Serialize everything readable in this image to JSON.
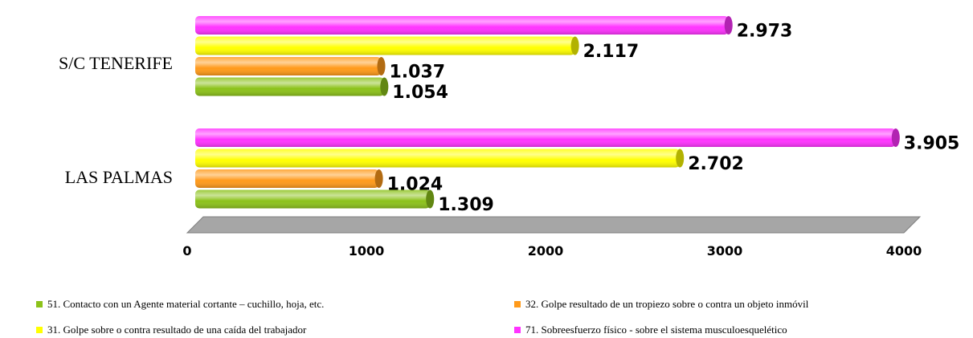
{
  "chart_data": {
    "type": "bar",
    "orientation": "horizontal",
    "categories": [
      "S/C TENERIFE",
      "LAS PALMAS"
    ],
    "series": [
      {
        "name": "51. Contacto con un Agente material cortante –  cuchillo, hoja, etc.",
        "color": "#8cc21a",
        "values": [
          1054,
          1309
        ],
        "value_labels": [
          "1.054",
          "1.309"
        ]
      },
      {
        "name": "32. Golpe resultado de un tropiezo sobre o contra un objeto inmóvil",
        "color": "#ff9a1a",
        "values": [
          1037,
          1024
        ],
        "value_labels": [
          "1.037",
          "1.024"
        ]
      },
      {
        "name": "31. Golpe sobre o contra resultado de una caída del trabajador",
        "color": "#ffff00",
        "values": [
          2117,
          2702
        ],
        "value_labels": [
          "2.117",
          "2.702"
        ]
      },
      {
        "name": "71. Sobreesfuerzo físico - sobre el sistema musculoesquelético",
        "color": "#ff33ff",
        "values": [
          2973,
          3905
        ],
        "value_labels": [
          "2.973",
          "3.905"
        ]
      }
    ],
    "xlim": [
      0,
      4000
    ],
    "xticks": [
      0,
      1000,
      2000,
      3000,
      4000
    ]
  }
}
